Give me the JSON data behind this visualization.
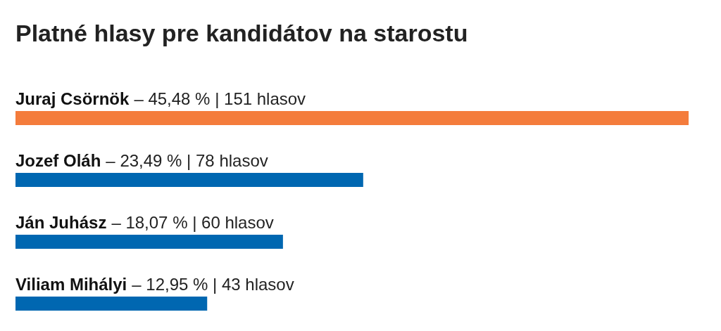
{
  "chart_data": {
    "type": "bar",
    "orientation": "horizontal",
    "title": "Platné hlasy pre kandidátov na starostu",
    "categories": [
      "Juraj Csörnök",
      "Jozef Oláh",
      "Ján Juhász",
      "Viliam Mihályi"
    ],
    "values": [
      151,
      78,
      60,
      43
    ],
    "value_labels": [
      "– 45,48 % | 151 hlasov",
      "– 23,49 % | 78 hlasov",
      "– 18,07 % | 60 hlasov",
      "– 12,95 % | 43 hlasov"
    ],
    "colors": [
      "#f47c3c",
      "#0067b1",
      "#0067b1",
      "#0067b1"
    ]
  }
}
